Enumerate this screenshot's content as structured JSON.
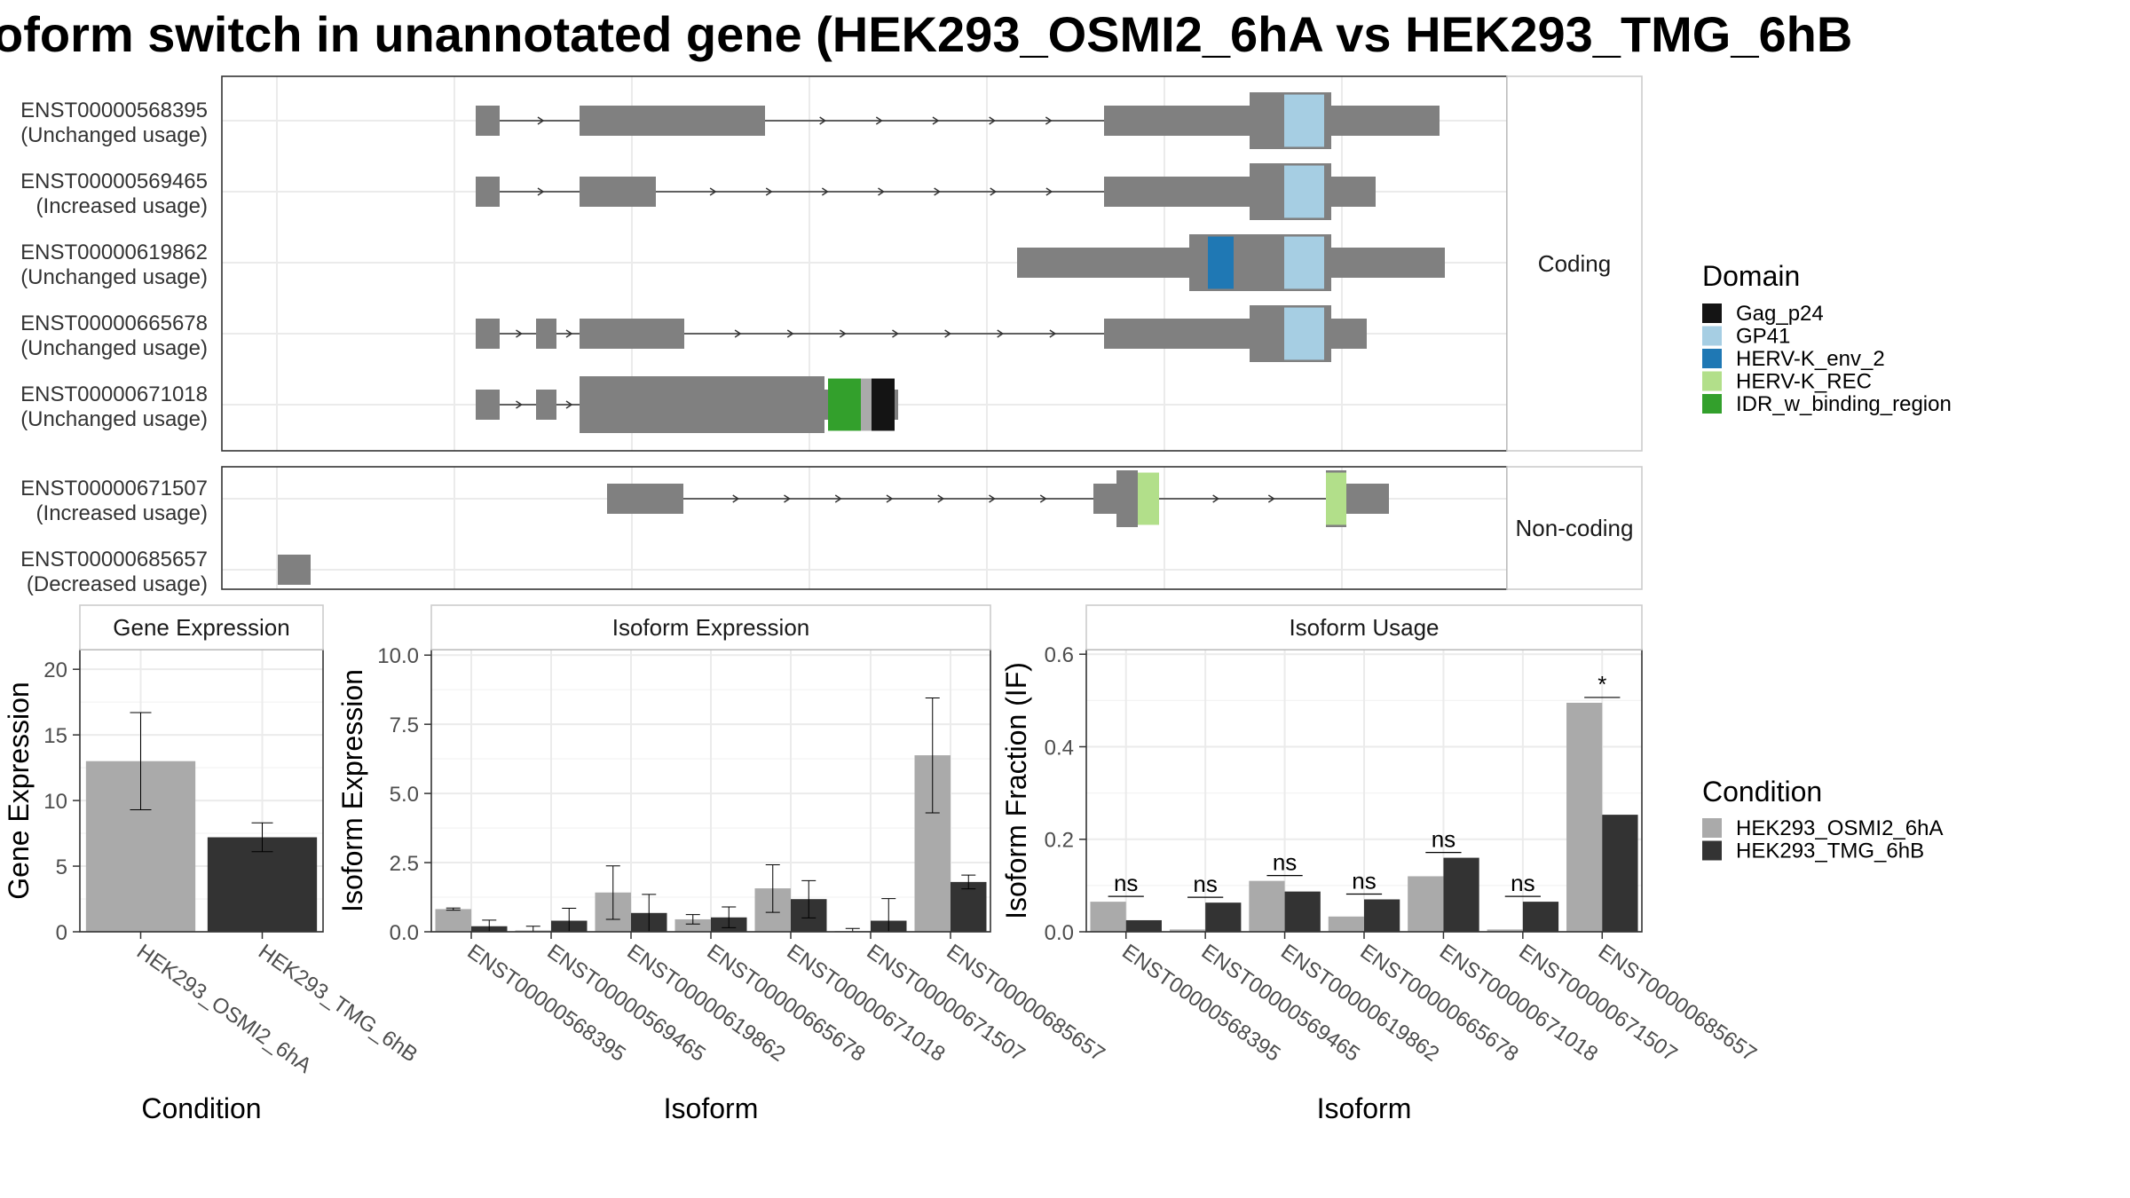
{
  "title": "oform switch in unannotated gene (HEK293_OSMI2_6hA vs HEK293_TMG_6hB",
  "colors": {
    "exon": "#808080",
    "grid": "#ebebeb",
    "panel_border": "#333333",
    "strip_border": "#cccccc",
    "cond1": "#aaaaaa",
    "cond2": "#333333"
  },
  "chart_data": [
    {
      "type": "gene-structure",
      "facets": [
        {
          "label": "Coding",
          "isoforms": [
            {
              "id": "ENST00000568395",
              "usage": "(Unchanged usage)"
            },
            {
              "id": "ENST00000569465",
              "usage": "(Increased usage)"
            },
            {
              "id": "ENST00000619862",
              "usage": "(Unchanged usage)"
            },
            {
              "id": "ENST00000665678",
              "usage": "(Unchanged usage)"
            },
            {
              "id": "ENST00000671018",
              "usage": "(Unchanged usage)"
            }
          ]
        },
        {
          "label": "Non-coding",
          "isoforms": [
            {
              "id": "ENST00000671507",
              "usage": "(Increased usage)"
            },
            {
              "id": "ENST00000685657",
              "usage": "(Decreased usage)"
            }
          ]
        }
      ],
      "legend": {
        "title": "Domain",
        "items": [
          {
            "label": "Gag_p24",
            "color": "#141414"
          },
          {
            "label": "GP41",
            "color": "#a6cee3"
          },
          {
            "label": "HERV-K_env_2",
            "color": "#1f78b4"
          },
          {
            "label": "HERV-K_REC",
            "color": "#b2df8a"
          },
          {
            "label": "IDR_w_binding_region",
            "color": "#33a02c"
          }
        ]
      }
    },
    {
      "type": "bar",
      "title": "Gene Expression",
      "xlabel": "Condition",
      "ylabel": "Gene Expression",
      "categories": [
        "HEK293_OSMI2_6hA",
        "HEK293_TMG_6hB"
      ],
      "values": [
        13.0,
        7.2
      ],
      "errors": [
        [
          9.3,
          16.7
        ],
        [
          6.1,
          8.3
        ]
      ],
      "ylim": [
        0,
        21.5
      ],
      "yticks": [
        "0",
        "5",
        "10",
        "15",
        "20"
      ],
      "ytick_values": [
        0,
        5,
        10,
        15,
        20
      ]
    },
    {
      "type": "bar",
      "title": "Isoform Expression",
      "xlabel": "Isoform",
      "ylabel": "Isoform Expression",
      "categories": [
        "ENST00000568395",
        "ENST00000569465",
        "ENST00000619862",
        "ENST00000665678",
        "ENST00000671018",
        "ENST00000671507",
        "ENST00000685657"
      ],
      "series": [
        {
          "name": "HEK293_OSMI2_6hA",
          "values": [
            0.82,
            0.05,
            1.42,
            0.45,
            1.57,
            0.03,
            6.38
          ],
          "errors": [
            [
              0.78,
              0.86
            ],
            [
              0.0,
              0.2
            ],
            [
              0.45,
              2.38
            ],
            [
              0.28,
              0.62
            ],
            [
              0.7,
              2.42
            ],
            [
              0.0,
              0.12
            ],
            [
              4.3,
              8.45
            ]
          ]
        },
        {
          "name": "HEK293_TMG_6hB",
          "values": [
            0.2,
            0.4,
            0.68,
            0.52,
            1.18,
            0.4,
            1.8
          ],
          "errors": [
            [
              0.0,
              0.42
            ],
            [
              0.0,
              0.85
            ],
            [
              0.0,
              1.35
            ],
            [
              0.15,
              0.9
            ],
            [
              0.5,
              1.85
            ],
            [
              0.0,
              1.2
            ],
            [
              1.55,
              2.05
            ]
          ]
        }
      ],
      "ylim": [
        0,
        10.2
      ],
      "yticks": [
        "0.0",
        "2.5",
        "5.0",
        "7.5",
        "10.0"
      ],
      "ytick_values": [
        0,
        2.5,
        5,
        7.5,
        10
      ]
    },
    {
      "type": "bar",
      "title": "Isoform Usage",
      "xlabel": "Isoform",
      "ylabel": "Isoform Fraction (IF)",
      "categories": [
        "ENST00000568395",
        "ENST00000569465",
        "ENST00000619862",
        "ENST00000665678",
        "ENST00000671018",
        "ENST00000671507",
        "ENST00000685657"
      ],
      "series": [
        {
          "name": "HEK293_OSMI2_6hA",
          "values": [
            0.065,
            0.005,
            0.11,
            0.033,
            0.12,
            0.005,
            0.495
          ]
        },
        {
          "name": "HEK293_TMG_6hB",
          "values": [
            0.025,
            0.063,
            0.087,
            0.07,
            0.16,
            0.065,
            0.253
          ]
        }
      ],
      "significance": [
        "ns",
        "ns",
        "ns",
        "ns",
        "ns",
        "ns",
        "*"
      ],
      "ylim": [
        0,
        0.61
      ],
      "yticks": [
        "0.0",
        "0.2",
        "0.4",
        "0.6"
      ],
      "ytick_values": [
        0,
        0.2,
        0.4,
        0.6
      ]
    }
  ],
  "condition_legend": {
    "title": "Condition",
    "items": [
      {
        "label": "HEK293_OSMI2_6hA",
        "color": "#aaaaaa"
      },
      {
        "label": "HEK293_TMG_6hB",
        "color": "#333333"
      }
    ]
  }
}
